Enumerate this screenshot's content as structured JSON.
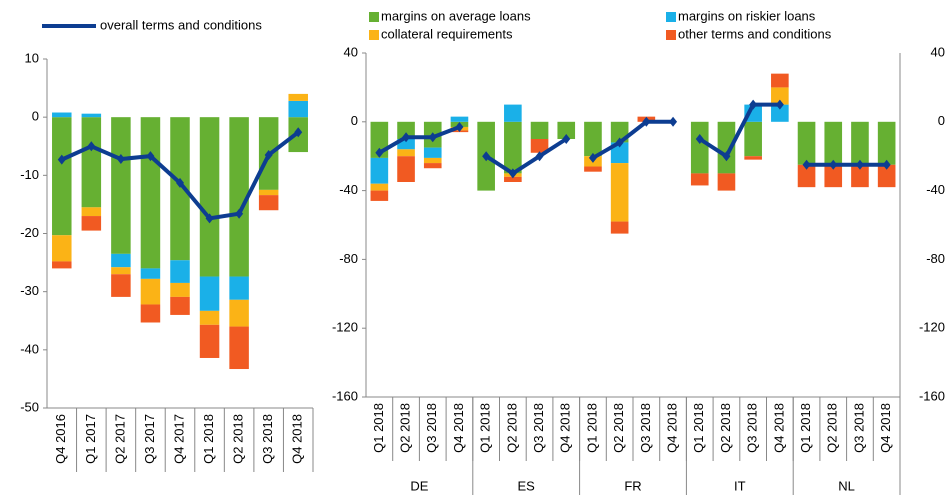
{
  "chart_data": [
    {
      "type": "bar",
      "categories": [
        "Q4 2016",
        "Q1 2017",
        "Q2 2017",
        "Q3 2017",
        "Q4 2017",
        "Q1 2018",
        "Q2 2018",
        "Q3 2018",
        "Q4 2018"
      ],
      "ylim": [
        -50,
        10
      ],
      "yticks": [
        -50,
        -40,
        -30,
        -20,
        -10,
        0,
        10
      ],
      "series": [
        {
          "color": "#66b032",
          "values": [
            -20.3,
            -15.5,
            -23.5,
            -26,
            -24.6,
            -27.4,
            -27.4,
            -12.5,
            -6
          ]
        },
        {
          "color": "#1ab0e8",
          "values": [
            0.8,
            0.6,
            -2.3,
            -1.8,
            -3.9,
            -5.9,
            -4,
            0,
            2.8
          ]
        },
        {
          "color": "#fbb316",
          "values": [
            -4.5,
            -1.5,
            -1.2,
            -4.4,
            -2.4,
            -2.4,
            -4.6,
            -0.9,
            1.2
          ]
        },
        {
          "color": "#f15a22",
          "values": [
            -1.2,
            -2.5,
            -3.9,
            -3.1,
            -3.1,
            -5.7,
            -7.3,
            -2.6,
            0
          ]
        },
        {
          "name": "overall terms and conditions",
          "type": "line",
          "color": "#0d3d91",
          "values": [
            -7.3,
            -5,
            -7.2,
            -6.7,
            -11.3,
            -17.4,
            -16.6,
            -6.5,
            -2.6
          ]
        }
      ]
    },
    {
      "type": "bar",
      "groups": [
        {
          "label": "DE",
          "categories": [
            "Q1 2018",
            "Q2 2018",
            "Q3 2018",
            "Q4 2018"
          ]
        },
        {
          "label": "ES",
          "categories": [
            "Q1 2018",
            "Q2 2018",
            "Q3 2018",
            "Q4 2018"
          ]
        },
        {
          "label": "FR",
          "categories": [
            "Q1 2018",
            "Q2 2018",
            "Q3 2018",
            "Q4 2018"
          ]
        },
        {
          "label": "IT",
          "categories": [
            "Q1 2018",
            "Q2 2018",
            "Q3 2018",
            "Q4 2018"
          ]
        },
        {
          "label": "NL",
          "categories": [
            "Q1 2018",
            "Q2 2018",
            "Q3 2018",
            "Q4 2018"
          ]
        }
      ],
      "ylim": [
        -160,
        40
      ],
      "yticks": [
        -160,
        -120,
        -80,
        -40,
        0,
        40
      ],
      "y2lim": [
        -160,
        40
      ],
      "y2ticks": [
        -160,
        -120,
        -80,
        -40,
        0,
        40
      ],
      "series": [
        {
          "name": "margins on average loans",
          "color": "#66b032",
          "values": [
            -21,
            -10,
            -15,
            -3,
            -40,
            -30,
            -10,
            -10,
            -20,
            -12,
            0,
            0,
            -30,
            -30,
            -20,
            0,
            -25,
            -25,
            -25,
            -25
          ]
        },
        {
          "name": "margins on riskier loans",
          "color": "#1ab0e8",
          "values": [
            -15,
            -6,
            -6,
            3,
            0,
            10,
            0,
            0,
            0,
            -12,
            0,
            0,
            0,
            0,
            10,
            10,
            0,
            0,
            0,
            0
          ]
        },
        {
          "name": "collateral requirements",
          "color": "#fbb316",
          "values": [
            -4,
            -4,
            -3,
            -2,
            0,
            -2,
            0,
            0,
            -6,
            -34,
            0,
            0,
            0,
            0,
            0,
            10,
            0,
            0,
            0,
            0
          ]
        },
        {
          "name": "other terms and conditions",
          "color": "#f15a22",
          "values": [
            -6,
            -15,
            -3,
            -1,
            0,
            -3,
            -8,
            0,
            -3,
            -7,
            3,
            0,
            -7,
            -10,
            -2,
            8,
            -13,
            -13,
            -13,
            -13
          ]
        },
        {
          "type": "line",
          "color": "#0d3d91",
          "values": [
            -18,
            -9,
            -9,
            -3,
            -20,
            -30,
            -20,
            -10,
            -21,
            -12,
            0,
            0,
            -10,
            -20,
            10,
            10,
            -25,
            -25,
            -25,
            -25
          ]
        }
      ]
    }
  ]
}
